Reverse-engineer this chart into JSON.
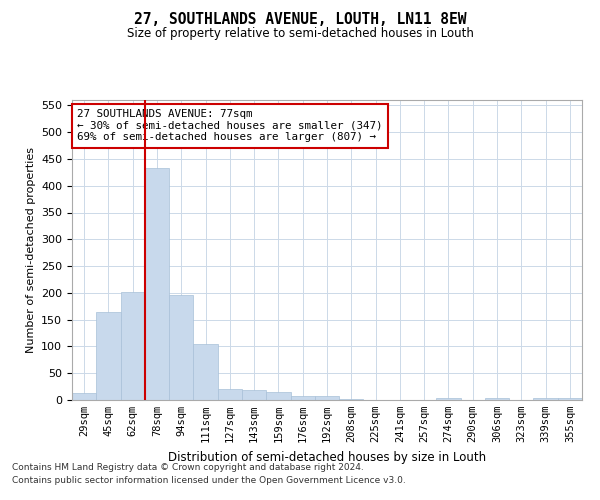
{
  "title": "27, SOUTHLANDS AVENUE, LOUTH, LN11 8EW",
  "subtitle": "Size of property relative to semi-detached houses in Louth",
  "xlabel": "Distribution of semi-detached houses by size in Louth",
  "ylabel": "Number of semi-detached properties",
  "categories": [
    "29sqm",
    "45sqm",
    "62sqm",
    "78sqm",
    "94sqm",
    "111sqm",
    "127sqm",
    "143sqm",
    "159sqm",
    "176sqm",
    "192sqm",
    "208sqm",
    "225sqm",
    "241sqm",
    "257sqm",
    "274sqm",
    "290sqm",
    "306sqm",
    "323sqm",
    "339sqm",
    "355sqm"
  ],
  "values": [
    13,
    165,
    202,
    433,
    196,
    105,
    20,
    18,
    15,
    7,
    7,
    1,
    0,
    0,
    0,
    3,
    0,
    3,
    0,
    3,
    3
  ],
  "bar_color": "#c8d9ec",
  "bar_edge_color": "#a8c0d8",
  "highlight_line_color": "#cc0000",
  "annotation_box_text": "27 SOUTHLANDS AVENUE: 77sqm\n← 30% of semi-detached houses are smaller (347)\n69% of semi-detached houses are larger (807) →",
  "annotation_box_color": "#cc0000",
  "ylim": [
    0,
    560
  ],
  "yticks": [
    0,
    50,
    100,
    150,
    200,
    250,
    300,
    350,
    400,
    450,
    500,
    550
  ],
  "footnote1": "Contains HM Land Registry data © Crown copyright and database right 2024.",
  "footnote2": "Contains public sector information licensed under the Open Government Licence v3.0.",
  "bg_color": "#ffffff",
  "grid_color": "#ccd9e8"
}
